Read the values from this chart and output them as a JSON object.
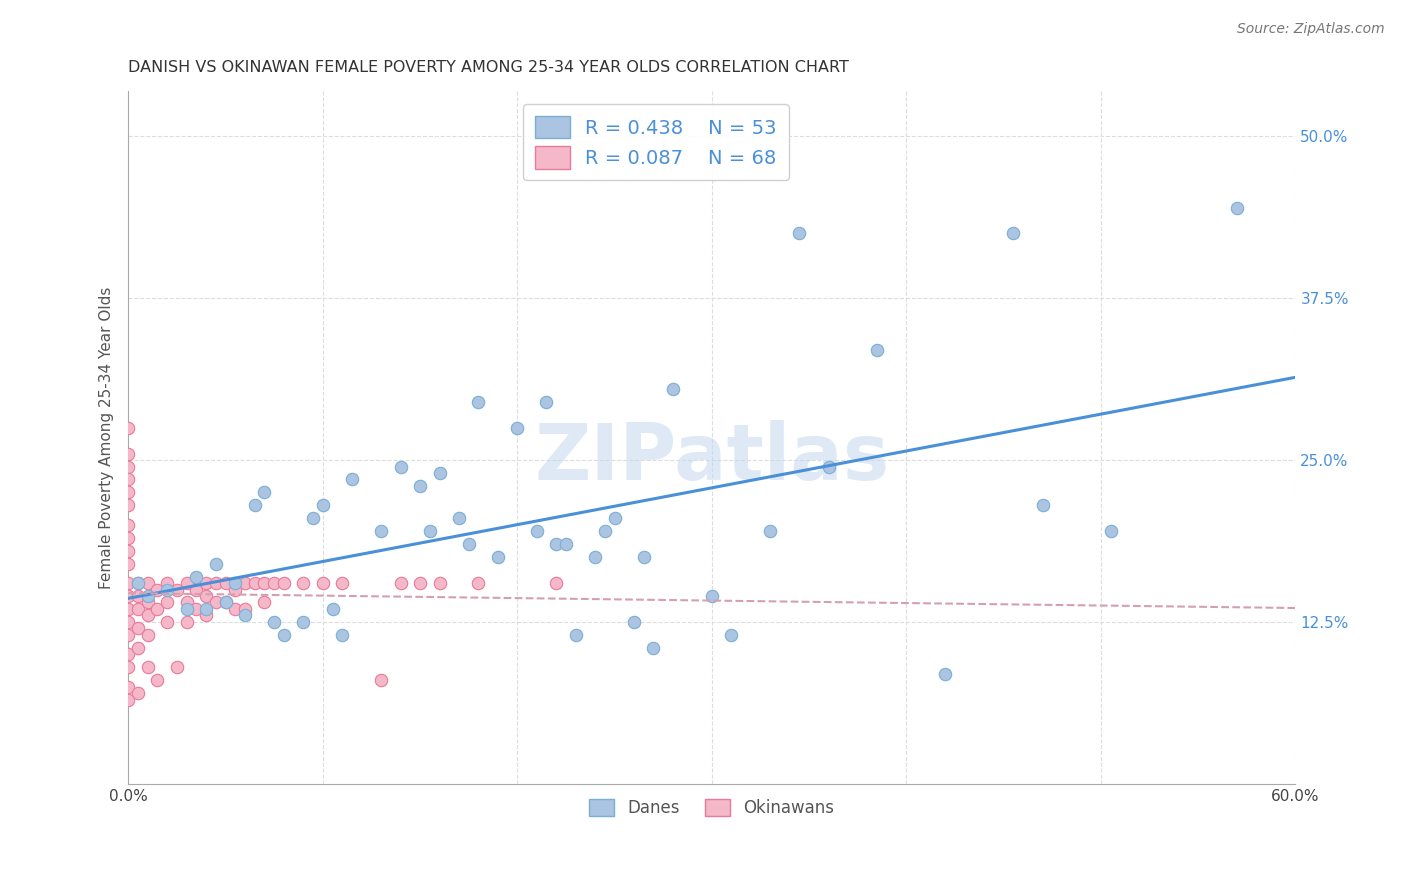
{
  "title": "DANISH VS OKINAWAN FEMALE POVERTY AMONG 25-34 YEAR OLDS CORRELATION CHART",
  "source": "Source: ZipAtlas.com",
  "ylabel": "Female Poverty Among 25-34 Year Olds",
  "xlim": [
    0.0,
    0.6
  ],
  "ylim": [
    0.0,
    0.535
  ],
  "xtick_labels": [
    "0.0%",
    "",
    "",
    "",
    "",
    "",
    "60.0%"
  ],
  "xtick_values": [
    0.0,
    0.1,
    0.2,
    0.3,
    0.4,
    0.5,
    0.6
  ],
  "ytick_labels": [
    "12.5%",
    "25.0%",
    "37.5%",
    "50.0%"
  ],
  "ytick_values": [
    0.125,
    0.25,
    0.375,
    0.5
  ],
  "danes_color": "#aac4e2",
  "danes_edge_color": "#7aafd4",
  "okinawans_color": "#f5b8c8",
  "okinawans_edge_color": "#e87a9a",
  "danes_line_color": "#4a90d9",
  "okinawans_line_color": "#e8a0b0",
  "danes_R": 0.438,
  "danes_N": 53,
  "okinawans_R": 0.087,
  "okinawans_N": 68,
  "legend_text_color": "#4a90d9",
  "watermark": "ZIPatlas",
  "danes_x": [
    0.005,
    0.01,
    0.02,
    0.03,
    0.035,
    0.04,
    0.045,
    0.05,
    0.055,
    0.06,
    0.065,
    0.07,
    0.075,
    0.08,
    0.09,
    0.095,
    0.1,
    0.105,
    0.11,
    0.115,
    0.13,
    0.14,
    0.15,
    0.155,
    0.16,
    0.17,
    0.175,
    0.18,
    0.19,
    0.2,
    0.21,
    0.215,
    0.22,
    0.225,
    0.23,
    0.24,
    0.245,
    0.25,
    0.26,
    0.265,
    0.27,
    0.28,
    0.3,
    0.31,
    0.33,
    0.345,
    0.36,
    0.385,
    0.42,
    0.455,
    0.47,
    0.505,
    0.57
  ],
  "danes_y": [
    0.155,
    0.145,
    0.15,
    0.135,
    0.16,
    0.135,
    0.17,
    0.14,
    0.155,
    0.13,
    0.215,
    0.225,
    0.125,
    0.115,
    0.125,
    0.205,
    0.215,
    0.135,
    0.115,
    0.235,
    0.195,
    0.245,
    0.23,
    0.195,
    0.24,
    0.205,
    0.185,
    0.295,
    0.175,
    0.275,
    0.195,
    0.295,
    0.185,
    0.185,
    0.115,
    0.175,
    0.195,
    0.205,
    0.125,
    0.175,
    0.105,
    0.305,
    0.145,
    0.115,
    0.195,
    0.425,
    0.245,
    0.335,
    0.085,
    0.425,
    0.215,
    0.195,
    0.445
  ],
  "okinawans_x": [
    0.0,
    0.0,
    0.0,
    0.0,
    0.0,
    0.0,
    0.0,
    0.0,
    0.0,
    0.0,
    0.0,
    0.0,
    0.0,
    0.0,
    0.0,
    0.0,
    0.0,
    0.0,
    0.0,
    0.005,
    0.005,
    0.005,
    0.005,
    0.005,
    0.005,
    0.01,
    0.01,
    0.01,
    0.01,
    0.01,
    0.015,
    0.015,
    0.015,
    0.02,
    0.02,
    0.02,
    0.025,
    0.025,
    0.03,
    0.03,
    0.03,
    0.035,
    0.035,
    0.04,
    0.04,
    0.04,
    0.045,
    0.045,
    0.05,
    0.05,
    0.055,
    0.055,
    0.06,
    0.06,
    0.065,
    0.07,
    0.07,
    0.075,
    0.08,
    0.09,
    0.1,
    0.11,
    0.13,
    0.14,
    0.15,
    0.16,
    0.18,
    0.22
  ],
  "okinawans_y": [
    0.275,
    0.255,
    0.245,
    0.235,
    0.225,
    0.215,
    0.2,
    0.19,
    0.18,
    0.17,
    0.155,
    0.145,
    0.135,
    0.125,
    0.115,
    0.1,
    0.09,
    0.075,
    0.065,
    0.155,
    0.145,
    0.135,
    0.12,
    0.105,
    0.07,
    0.155,
    0.14,
    0.13,
    0.115,
    0.09,
    0.15,
    0.135,
    0.08,
    0.155,
    0.14,
    0.125,
    0.15,
    0.09,
    0.155,
    0.14,
    0.125,
    0.15,
    0.135,
    0.155,
    0.145,
    0.13,
    0.155,
    0.14,
    0.155,
    0.14,
    0.15,
    0.135,
    0.155,
    0.135,
    0.155,
    0.155,
    0.14,
    0.155,
    0.155,
    0.155,
    0.155,
    0.155,
    0.08,
    0.155,
    0.155,
    0.155,
    0.155,
    0.155
  ]
}
